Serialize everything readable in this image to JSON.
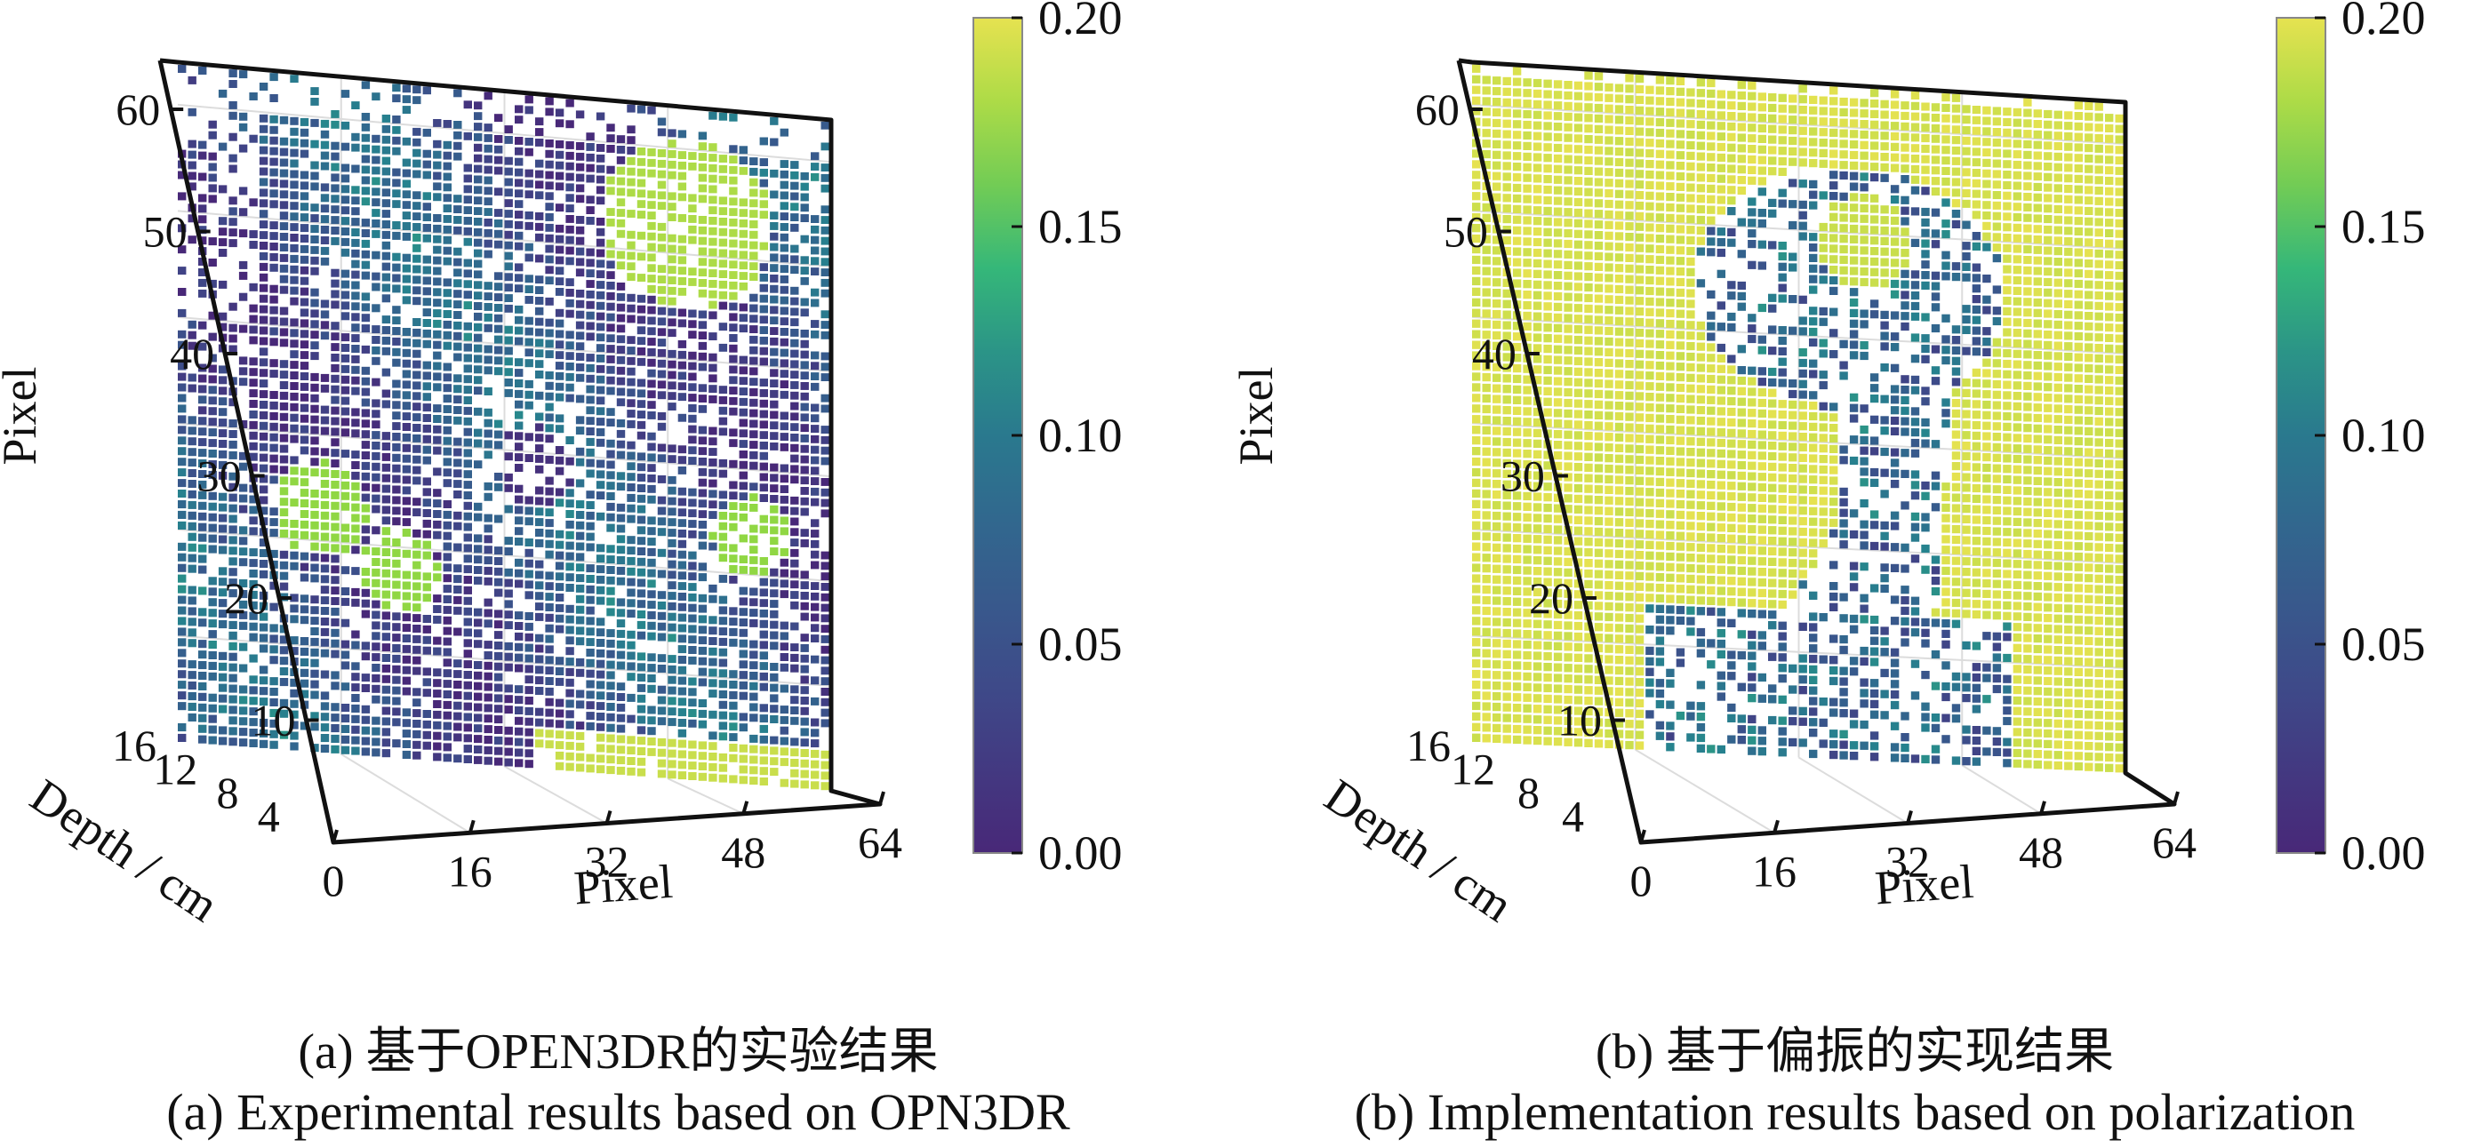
{
  "chart_data": [
    {
      "type": "heatmap",
      "subtype": "3d-voxel",
      "caption_cn": "(a) 基于OPEN3DR的实验结果",
      "caption_en": "(a) Experimental results based on OPN3DR",
      "xlabel": "Pixel",
      "ylabel": "Pixel",
      "zlabel": "Depth / cm",
      "x_ticks": [
        "0",
        "16",
        "32",
        "48",
        "64"
      ],
      "y_ticks": [
        "10",
        "20",
        "30",
        "40",
        "50",
        "60"
      ],
      "z_ticks": [
        "4",
        "8",
        "12",
        "16"
      ],
      "xlim": [
        0,
        64
      ],
      "ylim": [
        0,
        64
      ],
      "zlim": [
        0,
        16
      ],
      "colorbar": {
        "ticks": [
          "0.00",
          "0.05",
          "0.10",
          "0.15",
          "0.20"
        ],
        "range": [
          0,
          0.2
        ],
        "colormap": "viridis"
      },
      "grid": true
    },
    {
      "type": "heatmap",
      "subtype": "3d-voxel",
      "caption_cn": "(b) 基于偏振的实现结果",
      "caption_en": "(b) Implementation results based on polarization",
      "xlabel": "Pixel",
      "ylabel": "Pixel",
      "zlabel": "Depth / cm",
      "x_ticks": [
        "0",
        "16",
        "32",
        "48",
        "64"
      ],
      "y_ticks": [
        "10",
        "20",
        "30",
        "40",
        "50",
        "60"
      ],
      "z_ticks": [
        "4",
        "8",
        "12",
        "16"
      ],
      "xlim": [
        0,
        64
      ],
      "ylim": [
        0,
        64
      ],
      "zlim": [
        0,
        16
      ],
      "colorbar": {
        "ticks": [
          "0.00",
          "0.05",
          "0.10",
          "0.15",
          "0.20"
        ],
        "range": [
          0,
          0.2
        ],
        "colormap": "viridis"
      },
      "grid": true
    }
  ]
}
